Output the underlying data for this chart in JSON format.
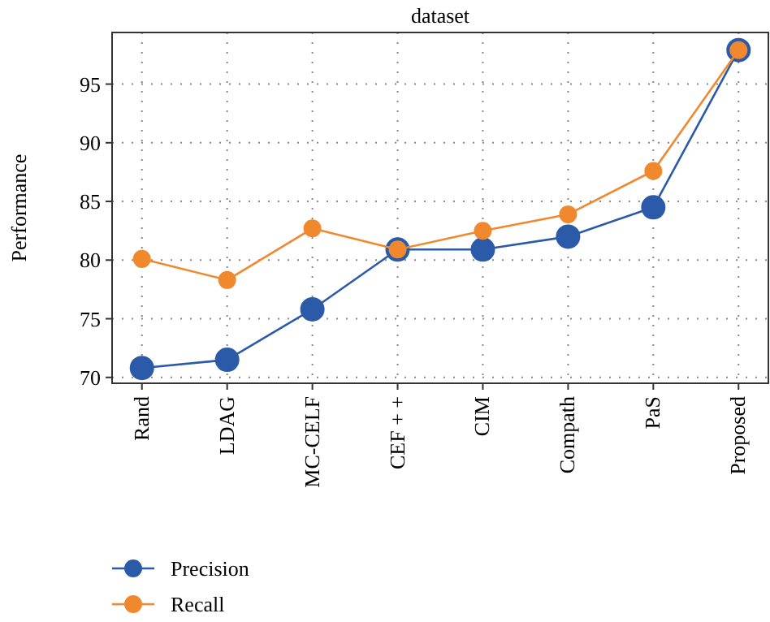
{
  "chart_data": {
    "type": "line",
    "title": "dataset",
    "ylabel": "Performance",
    "categories": [
      "Rand",
      "LDAG",
      "MC-CELF",
      "CEF + +",
      "CIM",
      "Compath",
      "PaS",
      "Proposed"
    ],
    "series": [
      {
        "name": "Precision",
        "color": "#2b5ba8",
        "values": [
          70.8,
          71.5,
          75.8,
          80.9,
          80.9,
          82.0,
          84.5,
          97.9
        ]
      },
      {
        "name": "Recall",
        "color": "#f0892e",
        "values": [
          80.1,
          78.3,
          82.7,
          80.9,
          82.5,
          83.9,
          87.6,
          97.9
        ]
      }
    ],
    "ylim": [
      69.5,
      99.4
    ],
    "yticks": [
      70,
      75,
      80,
      85,
      90,
      95
    ],
    "grid": true,
    "legend": "bottom left",
    "marker": "circle",
    "line_style": "solid"
  }
}
